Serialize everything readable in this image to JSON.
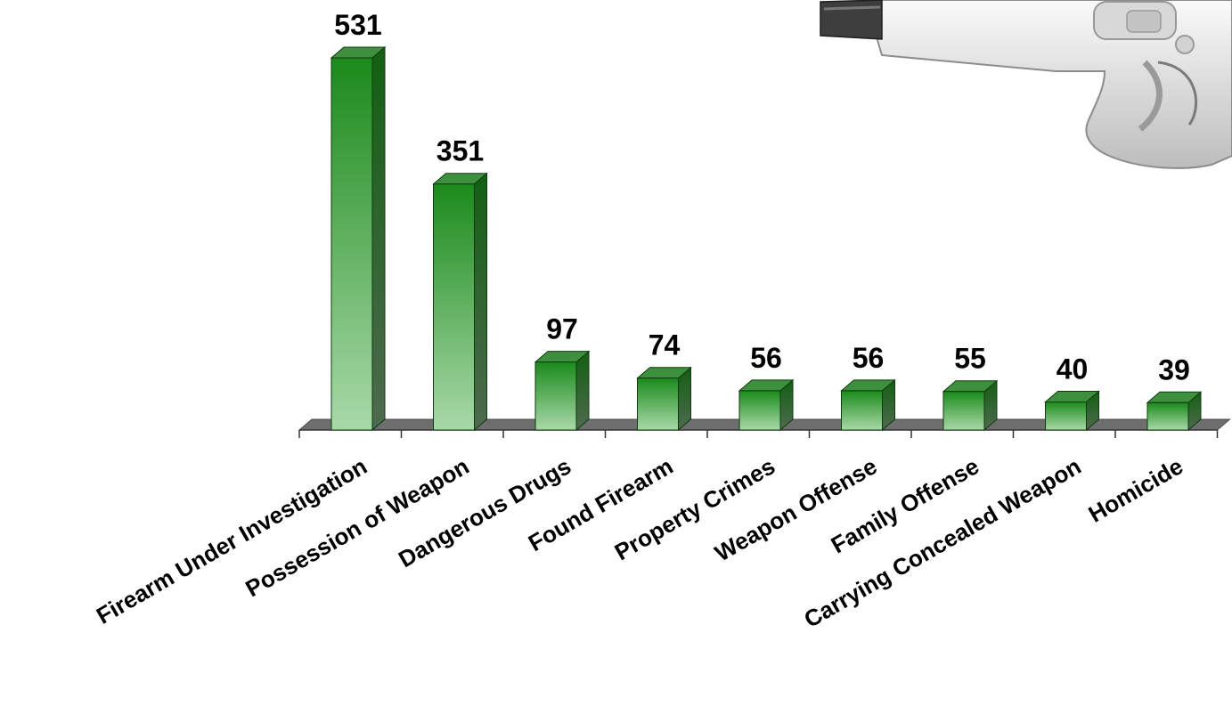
{
  "chart_data": {
    "type": "bar",
    "categories": [
      "Firearm Under Investigation",
      "Possession of Weapon",
      "Dangerous Drugs",
      "Found Firearm",
      "Property Crimes",
      "Weapon Offense",
      "Family Offense",
      "Carrying Concealed Weapon",
      "Homicide"
    ],
    "values": [
      531,
      351,
      97,
      74,
      56,
      56,
      55,
      40,
      39
    ],
    "value_labels": [
      "531",
      "351",
      "97",
      "74",
      "56",
      "56",
      "55",
      "40",
      "39"
    ],
    "ylim": [
      0,
      531
    ],
    "grid": false,
    "legend": "none",
    "style": "3d",
    "colors": {
      "bar_top": "#1b8a1b",
      "bar_bottom": "#a9d9a9",
      "bar_side": "#135f13",
      "floor": "#6e6e6e"
    }
  },
  "decoration": {
    "icon": "handgun-icon"
  }
}
